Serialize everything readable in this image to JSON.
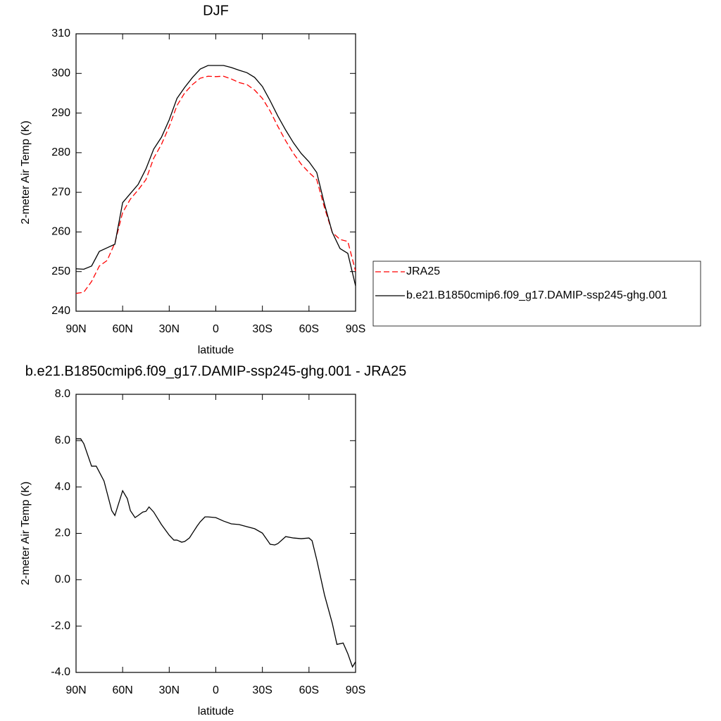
{
  "chart_data": [
    {
      "type": "line",
      "title": "DJF",
      "xlabel": "latitude",
      "ylabel": "2-meter Air Temp (K)",
      "x": [
        90,
        85,
        80,
        75,
        70,
        65,
        60,
        55,
        50,
        45,
        40,
        35,
        30,
        25,
        20,
        15,
        10,
        5,
        0,
        -5,
        -10,
        -15,
        -20,
        -25,
        -30,
        -35,
        -40,
        -45,
        -50,
        -55,
        -60,
        -65,
        -70,
        -75,
        -80,
        -85,
        -90
      ],
      "series": [
        {
          "name": "JRA25",
          "color": "#ff0000",
          "linestyle": "dashed",
          "values": [
            244.5,
            244.8,
            247.5,
            251.4,
            252.8,
            257.2,
            264.9,
            268.3,
            270.6,
            273.2,
            278.6,
            282.1,
            286.6,
            291.9,
            295.1,
            297.2,
            298.8,
            299.3,
            299.2,
            299.3,
            298.6,
            297.7,
            297.2,
            295.8,
            293.7,
            290.5,
            286.6,
            283.0,
            279.8,
            277.1,
            275.0,
            273.2,
            266.1,
            259.9,
            258.1,
            257.6,
            250.1
          ]
        },
        {
          "name": "b.e21.B1850cmip6.f09_g17.DAMIP-ssp245-ghg.001",
          "color": "#000000",
          "linestyle": "solid",
          "values": [
            250.7,
            250.6,
            251.4,
            255.1,
            256.0,
            256.9,
            267.4,
            269.7,
            272.0,
            275.9,
            280.9,
            283.9,
            288.3,
            293.7,
            296.5,
            299.0,
            301.1,
            302.0,
            302.0,
            302.0,
            301.5,
            300.8,
            300.2,
            299.0,
            296.7,
            293.1,
            289.2,
            285.7,
            282.5,
            279.8,
            277.7,
            275.0,
            267.0,
            259.9,
            255.8,
            254.6,
            246.4
          ]
        }
      ],
      "xlim": [
        90,
        -90
      ],
      "xticks": [
        {
          "value": 90,
          "label": "90N"
        },
        {
          "value": 60,
          "label": "60N"
        },
        {
          "value": 30,
          "label": "30N"
        },
        0,
        {
          "value": -30,
          "label": "30S"
        },
        {
          "value": -60,
          "label": "60S"
        },
        {
          "value": -90,
          "label": "90S"
        }
      ],
      "ylim": [
        240,
        310
      ],
      "yticks": [
        240,
        250,
        260,
        270,
        280,
        290,
        300,
        310
      ],
      "legend": "right"
    },
    {
      "type": "line",
      "title": "b.e21.B1850cmip6.f09_g17.DAMIP-ssp245-ghg.001 - JRA25",
      "xlabel": "latitude",
      "ylabel": "2-meter Air Temp (K)",
      "x": [
        90,
        87,
        85,
        80,
        77,
        72,
        67,
        65,
        60,
        57,
        55,
        52,
        50,
        47,
        45,
        43,
        40,
        35,
        30,
        27,
        25,
        22,
        20,
        17,
        15,
        12,
        10,
        7,
        5,
        0,
        -5,
        -10,
        -15,
        -20,
        -25,
        -30,
        -35,
        -38,
        -40,
        -45,
        -50,
        -55,
        -60,
        -62,
        -65,
        -70,
        -75,
        -78,
        -82,
        -85,
        -88,
        -90
      ],
      "values": [
        6.08,
        6.08,
        5.87,
        4.9,
        4.9,
        4.26,
        2.98,
        2.77,
        3.84,
        3.5,
        2.98,
        2.68,
        2.77,
        2.92,
        2.95,
        3.14,
        2.92,
        2.38,
        1.92,
        1.71,
        1.71,
        1.62,
        1.65,
        1.8,
        2.01,
        2.32,
        2.5,
        2.71,
        2.71,
        2.68,
        2.53,
        2.41,
        2.38,
        2.29,
        2.2,
        2.01,
        1.53,
        1.5,
        1.56,
        1.86,
        1.8,
        1.77,
        1.8,
        1.68,
        0.86,
        -0.66,
        -1.88,
        -2.79,
        -2.73,
        -3.19,
        -3.76,
        -3.54
      ],
      "color": "#000000",
      "xlim": [
        90,
        -90
      ],
      "xticks": [
        {
          "value": 90,
          "label": "90N"
        },
        {
          "value": 60,
          "label": "60N"
        },
        {
          "value": 30,
          "label": "30N"
        },
        0,
        {
          "value": -30,
          "label": "30S"
        },
        {
          "value": -60,
          "label": "60S"
        },
        {
          "value": -90,
          "label": "90S"
        }
      ],
      "ylim": [
        -4,
        8
      ],
      "yticks": [
        {
          "value": -4,
          "label": "-4.0"
        },
        {
          "value": -2,
          "label": "-2.0"
        },
        {
          "value": 0,
          "label": "0.0"
        },
        {
          "value": 2,
          "label": "2.0"
        },
        {
          "value": 4,
          "label": "4.0"
        },
        {
          "value": 6,
          "label": "6.0"
        },
        {
          "value": 8,
          "label": "8.0"
        }
      ]
    }
  ]
}
